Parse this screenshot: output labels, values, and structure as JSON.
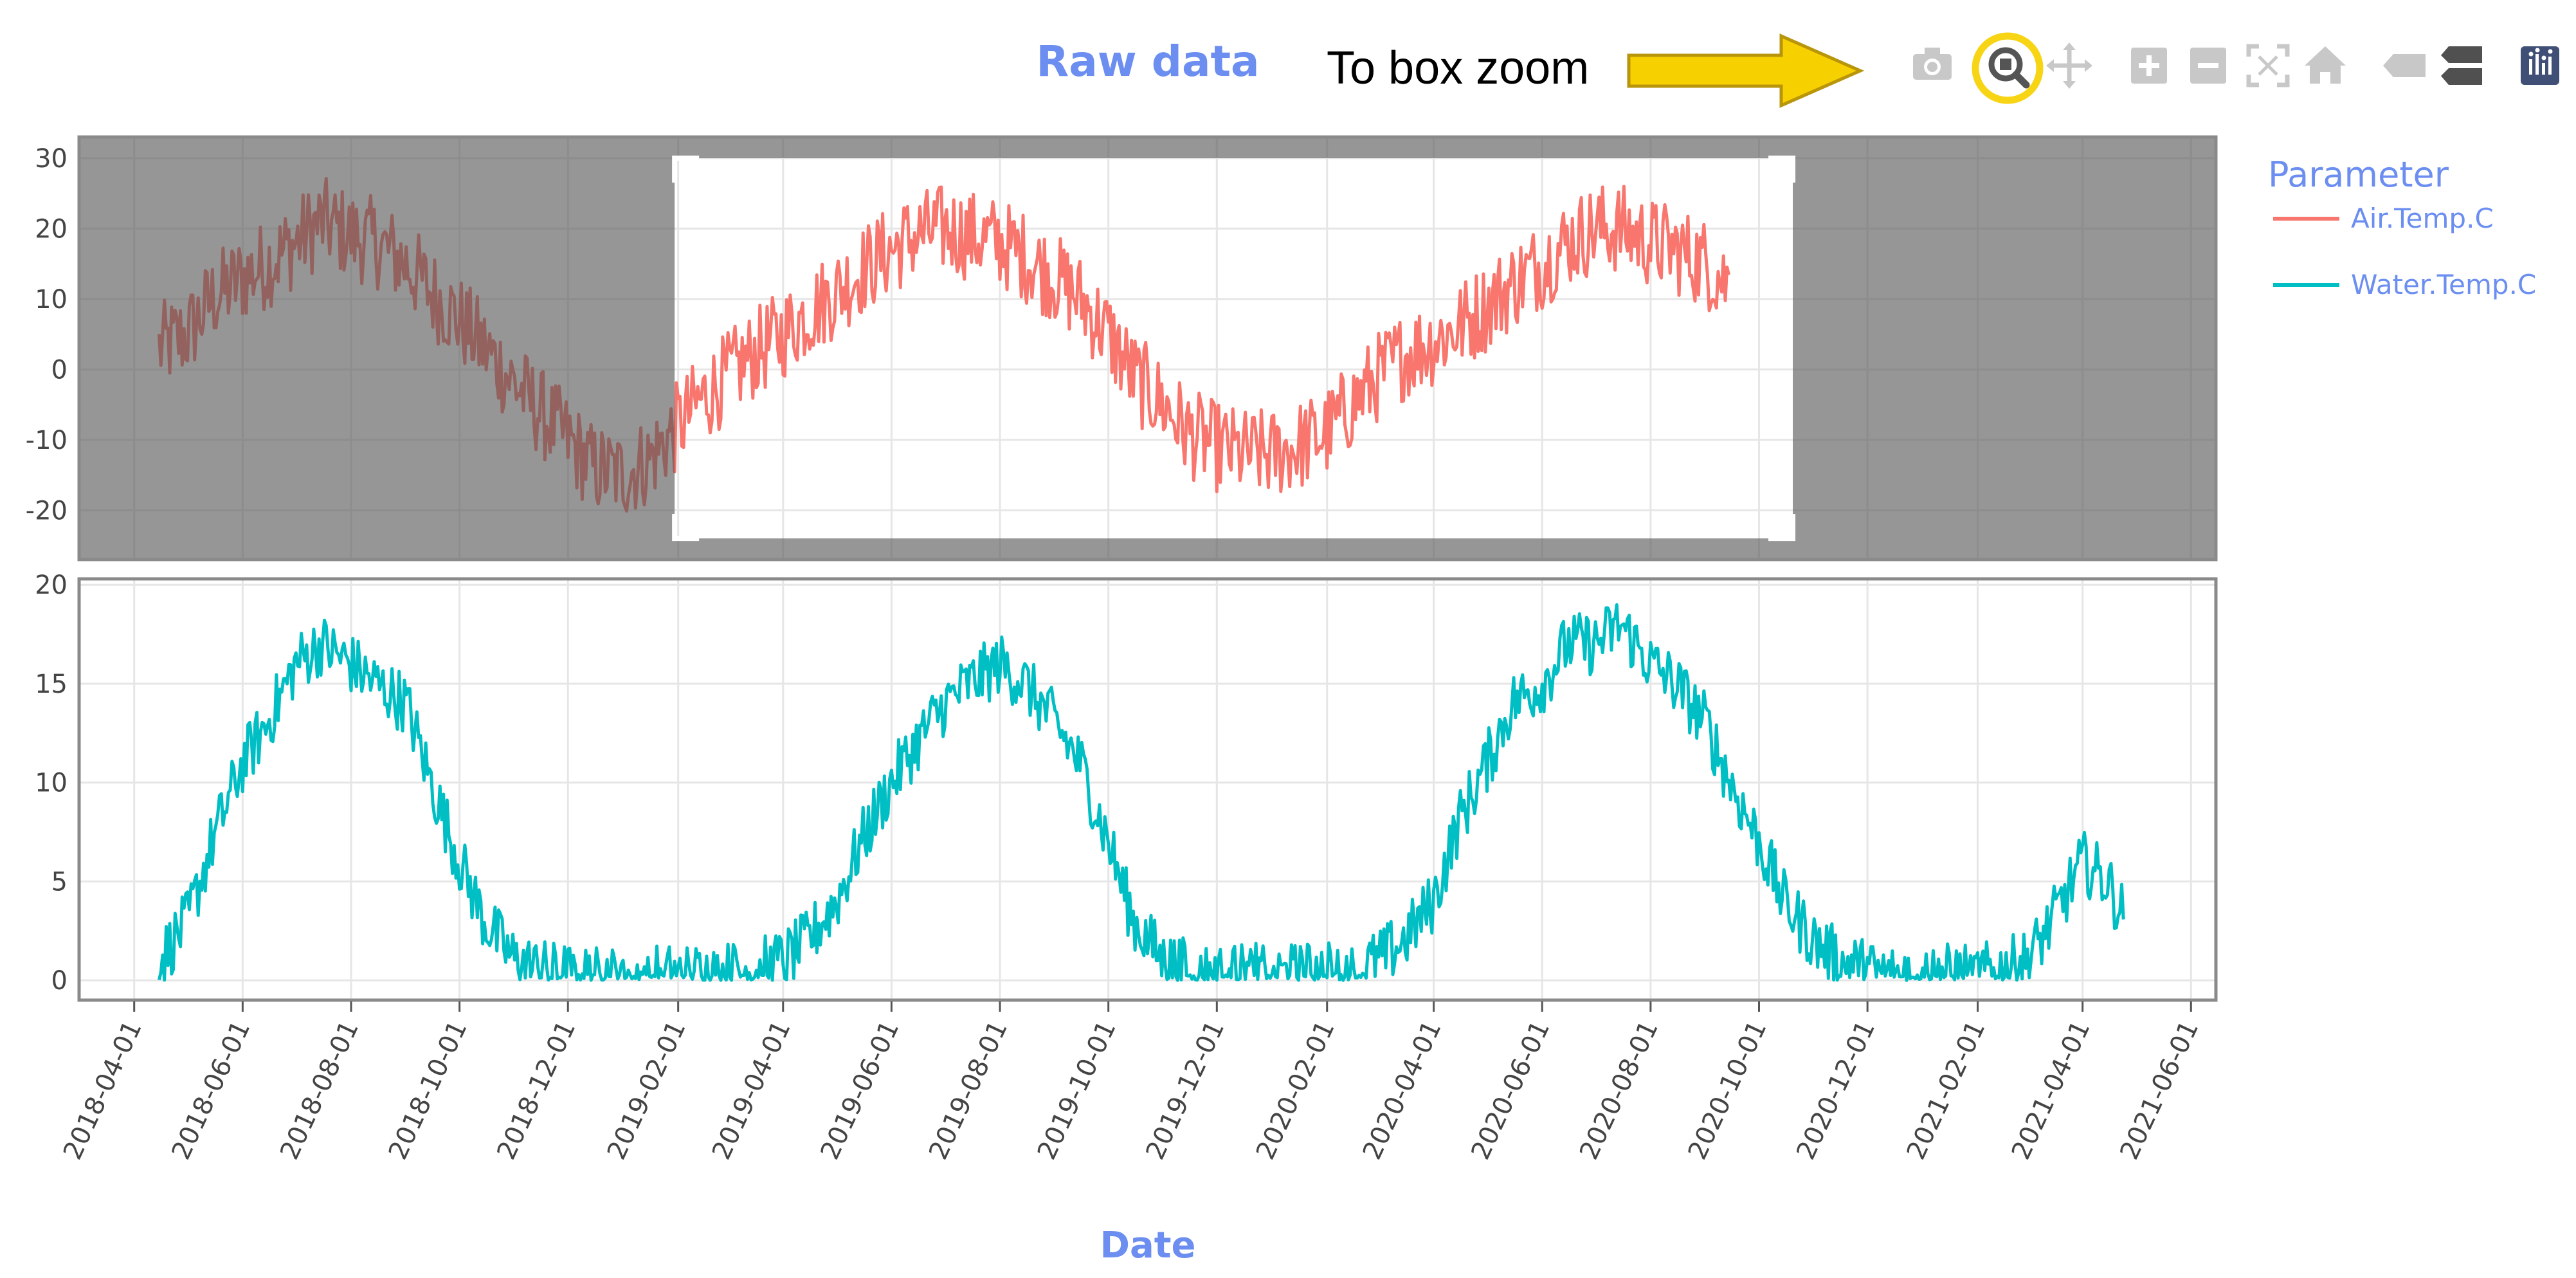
{
  "header": {
    "title": "Raw data",
    "annotation": "To box zoom"
  },
  "modebar": {
    "buttons": [
      "camera-icon",
      "zoom-icon",
      "pan-icon",
      "zoom-in-icon",
      "zoom-out-icon",
      "autoscale-icon",
      "reset-axes-icon",
      "hover-closest-icon",
      "hover-compare-icon",
      "plotly-logo-icon"
    ],
    "active": "zoom-icon",
    "highlight_color": "#f7d515",
    "arrow_color": "#f7d000"
  },
  "legend": {
    "title": "Parameter",
    "items": [
      {
        "label": "Air.Temp.C",
        "color": "#f8766d"
      },
      {
        "label": "Water.Temp.C",
        "color": "#00bfc4"
      }
    ]
  },
  "chart_data": [
    {
      "type": "line",
      "panel": "top",
      "series_name": "Air.Temp.C",
      "color": "#f8766d",
      "x": [
        "2018-04-15",
        "2018-05-01",
        "2018-05-15",
        "2018-06-01",
        "2018-06-15",
        "2018-07-01",
        "2018-07-15",
        "2018-08-01",
        "2018-08-15",
        "2018-09-01",
        "2018-09-15",
        "2018-10-01",
        "2018-10-15",
        "2018-11-01",
        "2018-11-15",
        "2018-12-01",
        "2018-12-15",
        "2019-01-01",
        "2019-01-15",
        "2019-02-01",
        "2019-02-15",
        "2019-03-01",
        "2019-03-15",
        "2019-04-01",
        "2019-04-15",
        "2019-05-01",
        "2019-05-15",
        "2019-06-01",
        "2019-06-15",
        "2019-07-01",
        "2019-07-15",
        "2019-08-01",
        "2019-08-15",
        "2019-09-01",
        "2019-09-15",
        "2019-10-01",
        "2019-10-15",
        "2019-11-01",
        "2019-11-15",
        "2019-12-01",
        "2019-12-15",
        "2020-01-01",
        "2020-01-15",
        "2020-02-01",
        "2020-02-15",
        "2020-03-01",
        "2020-03-15",
        "2020-04-01",
        "2020-04-15",
        "2020-05-01",
        "2020-05-15",
        "2020-06-01",
        "2020-06-15",
        "2020-07-01",
        "2020-07-15",
        "2020-08-01",
        "2020-08-15",
        "2020-09-01",
        "2020-09-15"
      ],
      "y": [
        3,
        5,
        10,
        13,
        15,
        18,
        21,
        19,
        18,
        15,
        11,
        7,
        3,
        -2,
        -6,
        -10,
        -14,
        -15,
        -13,
        -8,
        -4,
        -1,
        2,
        5,
        8,
        11,
        14,
        17,
        19,
        20,
        19,
        18,
        16,
        13,
        10,
        5,
        -1,
        -5,
        -9,
        -11,
        -12,
        -12,
        -11,
        -9,
        -5,
        -1,
        2,
        4,
        6,
        9,
        12,
        15,
        18,
        20,
        20,
        18,
        17,
        15,
        12
      ],
      "ylim": [
        -27,
        33
      ],
      "yticks": [
        "30",
        "20",
        "10",
        "0",
        "-10",
        "-20"
      ],
      "selection_box": {
        "x0": "2019-01-30",
        "x1": "2020-10-20",
        "y0": -24,
        "y1": 30
      }
    },
    {
      "type": "line",
      "panel": "bottom",
      "series_name": "Water.Temp.C",
      "color": "#00bfc4",
      "x": [
        "2018-04-15",
        "2018-05-01",
        "2018-05-15",
        "2018-06-01",
        "2018-06-15",
        "2018-07-01",
        "2018-07-15",
        "2018-08-01",
        "2018-08-15",
        "2018-09-01",
        "2018-09-15",
        "2018-10-01",
        "2018-10-15",
        "2018-11-01",
        "2018-11-15",
        "2018-12-01",
        "2018-12-15",
        "2019-01-01",
        "2019-01-15",
        "2019-02-01",
        "2019-02-15",
        "2019-03-01",
        "2019-03-15",
        "2019-04-01",
        "2019-04-15",
        "2019-05-01",
        "2019-05-15",
        "2019-06-01",
        "2019-06-15",
        "2019-07-01",
        "2019-07-15",
        "2019-08-01",
        "2019-08-15",
        "2019-09-01",
        "2019-09-15",
        "2019-10-01",
        "2019-10-15",
        "2019-11-01",
        "2019-11-15",
        "2019-12-01",
        "2019-12-15",
        "2020-01-01",
        "2020-01-15",
        "2020-02-01",
        "2020-02-15",
        "2020-03-01",
        "2020-03-15",
        "2020-04-01",
        "2020-04-15",
        "2020-05-01",
        "2020-05-15",
        "2020-06-01",
        "2020-06-15",
        "2020-07-01",
        "2020-07-15",
        "2020-08-01",
        "2020-08-15",
        "2020-09-01",
        "2020-09-15",
        "2020-10-01",
        "2020-10-15",
        "2020-11-01",
        "2020-11-15",
        "2020-12-01",
        "2020-12-15",
        "2021-01-01",
        "2021-01-15",
        "2021-02-01",
        "2021-02-15",
        "2021-03-01",
        "2021-03-15",
        "2021-04-01",
        "2021-04-15",
        "2021-04-25"
      ],
      "y": [
        1,
        3,
        7,
        11,
        13,
        16,
        17,
        16,
        15,
        14,
        10,
        6,
        3,
        1,
        0.5,
        0.3,
        0.2,
        0.2,
        0.2,
        0.3,
        0.3,
        0.4,
        0.5,
        1,
        2,
        4,
        7,
        10,
        12,
        14,
        15,
        16,
        15,
        13,
        11,
        7,
        3,
        1,
        0.5,
        0.3,
        0.3,
        0.3,
        0.3,
        0.4,
        0.5,
        1,
        2,
        4,
        8,
        11,
        14,
        15,
        17,
        17,
        18,
        16,
        15,
        13,
        10,
        7,
        4,
        2,
        1,
        0.5,
        0.3,
        0.3,
        0.3,
        0.3,
        0.5,
        1,
        3,
        6,
        5,
        3
      ],
      "ylim": [
        -1,
        20.3
      ],
      "yticks": [
        "20",
        "15",
        "10",
        "5",
        "0"
      ]
    }
  ],
  "x_axis": {
    "title": "Date",
    "ticks": [
      "2018-04-01",
      "2018-06-01",
      "2018-08-01",
      "2018-10-01",
      "2018-12-01",
      "2019-02-01",
      "2019-04-01",
      "2019-06-01",
      "2019-08-01",
      "2019-10-01",
      "2019-12-01",
      "2020-02-01",
      "2020-04-01",
      "2020-06-01",
      "2020-08-01",
      "2020-10-01",
      "2020-12-01",
      "2021-02-01",
      "2021-04-01",
      "2021-06-01"
    ],
    "range": [
      "2018-03-01",
      "2021-06-15"
    ]
  }
}
